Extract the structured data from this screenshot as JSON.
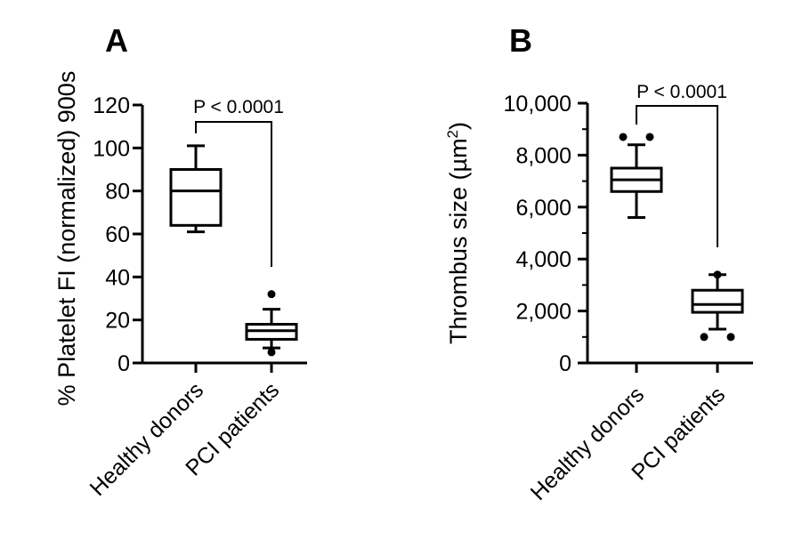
{
  "chart_data": [
    {
      "type": "box",
      "panel_label": "A",
      "ylabel": "% Platelet FI (normalized) 900s",
      "ylim": [
        0,
        120
      ],
      "yticks": [
        "0",
        "20",
        "40",
        "60",
        "80",
        "100",
        "120"
      ],
      "categories": [
        "Healthy donors",
        "PCI patients"
      ],
      "boxes": [
        {
          "whisker_low": 61,
          "q1": 64,
          "median": 80,
          "q3": 90,
          "whisker_high": 101,
          "outliers": []
        },
        {
          "whisker_low": 7,
          "q1": 11,
          "median": 15,
          "q3": 18,
          "whisker_high": 25,
          "outliers": [
            5,
            32
          ]
        }
      ],
      "significance": "P < 0.0001"
    },
    {
      "type": "box",
      "panel_label": "B",
      "ylabel": "Thrombus size (µm",
      "ylabel_sup": "2",
      "ylabel_close": ")",
      "ylim": [
        0,
        10000
      ],
      "yticks": [
        "0",
        "2,000",
        "4,000",
        "6,000",
        "8,000",
        "10,000"
      ],
      "categories": [
        "Healthy donors",
        "PCI patients"
      ],
      "boxes": [
        {
          "whisker_low": 5600,
          "q1": 6600,
          "median": 7050,
          "q3": 7500,
          "whisker_high": 8400,
          "outliers": [
            8700,
            8700
          ]
        },
        {
          "whisker_low": 1300,
          "q1": 1950,
          "median": 2250,
          "q3": 2800,
          "whisker_high": 3400,
          "outliers": [
            1000,
            1000,
            3400
          ]
        }
      ],
      "significance": "P < 0.0001"
    }
  ]
}
